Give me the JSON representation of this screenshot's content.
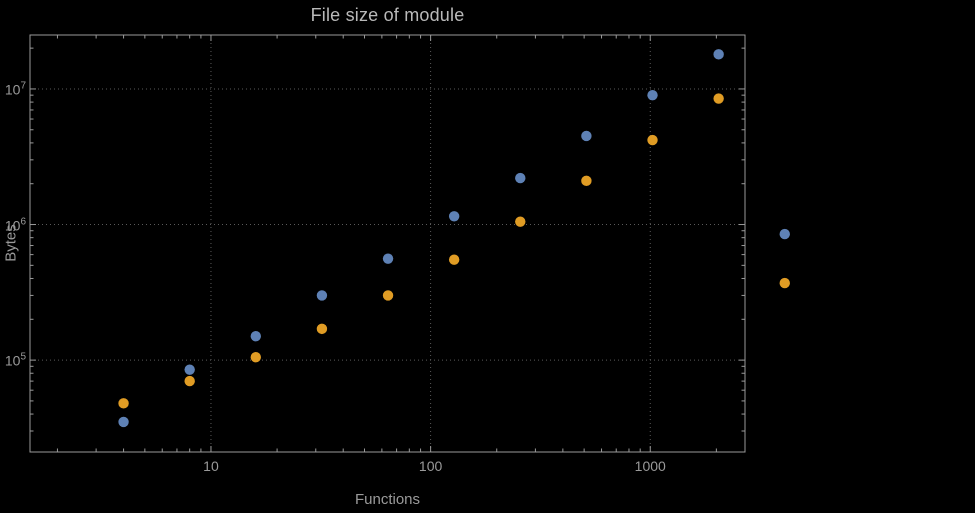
{
  "title": "File size of module",
  "xlabel": "Functions",
  "ylabel": "Bytes",
  "colors": {
    "background": "#000000",
    "frame": "#9a9a9a",
    "grid": "#5a5a5a",
    "text": "#9a9a9a",
    "title_text": "#b9b9b9",
    "series1": "#5e81b5",
    "series2": "#e09c24"
  },
  "chart_data": {
    "type": "scatter",
    "title": "File size of module",
    "xlabel": "Functions",
    "ylabel": "Bytes",
    "x_scale": "log",
    "y_scale": "log",
    "grid": true,
    "grid_style": "dotted",
    "legend": "none",
    "xlim": [
      1.5,
      2700
    ],
    "ylim": [
      21000,
      25000000
    ],
    "x_ticks": [
      10,
      100,
      1000
    ],
    "x_tick_labels": [
      "10",
      "100",
      "1000"
    ],
    "y_tick_base": "10",
    "y_tick_exponents": [
      5,
      6,
      7
    ],
    "x": [
      4,
      8,
      16,
      32,
      64,
      128,
      256,
      512,
      1024,
      2048,
      4096
    ],
    "series": [
      {
        "name": "blue-series",
        "color": "#5e81b5",
        "values": [
          35000,
          85000,
          150000,
          300000,
          560000,
          1150000,
          2200000,
          4500000,
          9000000,
          18000000,
          850000
        ]
      },
      {
        "name": "orange-series",
        "color": "#e09c24",
        "values": [
          48000,
          70000,
          105000,
          170000,
          300000,
          550000,
          1050000,
          2100000,
          4200000,
          8500000,
          370000
        ]
      }
    ]
  }
}
